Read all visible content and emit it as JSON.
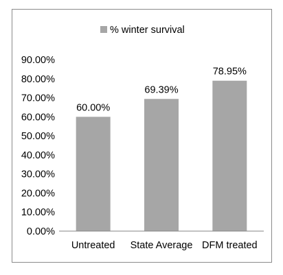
{
  "chart_data": {
    "type": "bar",
    "categories": [
      "Untreated",
      "State Average",
      "DFM treated"
    ],
    "series": [
      {
        "name": "% winter survival",
        "values": [
          60.0,
          69.39,
          78.95
        ],
        "labels": [
          "60.00%",
          "69.39%",
          "78.95%"
        ]
      }
    ],
    "title": "",
    "xlabel": "",
    "ylabel": "",
    "ylim": [
      0,
      90
    ],
    "yticks": [
      "0.00%",
      "10.00%",
      "20.00%",
      "30.00%",
      "40.00%",
      "50.00%",
      "60.00%",
      "70.00%",
      "80.00%",
      "90.00%"
    ],
    "grid": false,
    "legend": "top",
    "bar_color": "#a6a6a6"
  }
}
